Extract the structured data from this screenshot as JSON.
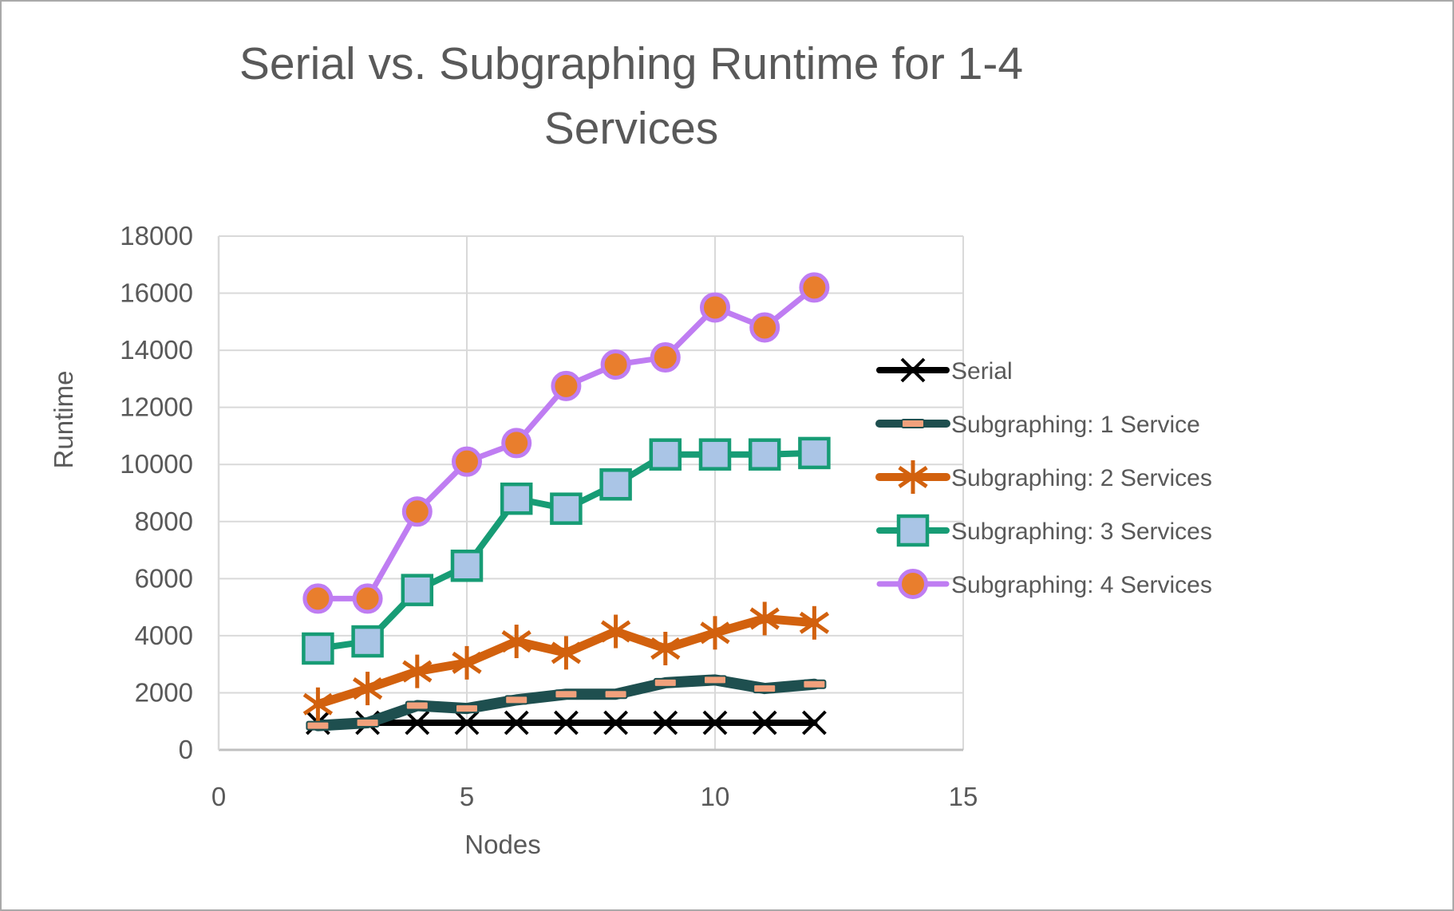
{
  "chart_data": {
    "type": "line",
    "title": "Serial vs. Subgraphing Runtime for 1-4 Services",
    "xlabel": "Nodes",
    "ylabel": "Runtime",
    "xlim": [
      0,
      15
    ],
    "ylim": [
      0,
      18000
    ],
    "x_ticks": [
      0,
      5,
      10,
      15
    ],
    "y_ticks": [
      0,
      2000,
      4000,
      6000,
      8000,
      10000,
      12000,
      14000,
      16000,
      18000
    ],
    "grid": true,
    "legend_position": "right",
    "x": [
      2,
      3,
      4,
      5,
      6,
      7,
      8,
      9,
      10,
      11,
      12
    ],
    "series": [
      {
        "name": "Serial",
        "marker": "x",
        "line_color": "#000000",
        "marker_fill": "#000000",
        "marker_stroke": "#000000",
        "line_width": 8,
        "values": [
          950,
          950,
          950,
          950,
          950,
          950,
          950,
          950,
          950,
          950,
          950
        ]
      },
      {
        "name": "Subgraphing: 1 Service",
        "marker": "dash",
        "line_color": "#1e4f4f",
        "marker_fill": "#f1a17c",
        "marker_stroke": "#1e4f4f",
        "line_width": 14,
        "values": [
          850,
          950,
          1550,
          1450,
          1750,
          1950,
          1950,
          2350,
          2450,
          2150,
          2300
        ]
      },
      {
        "name": "Subgraphing: 2 Services",
        "marker": "asterisk",
        "line_color": "#d2610e",
        "marker_fill": "#d2610e",
        "marker_stroke": "#d2610e",
        "line_width": 11,
        "values": [
          1600,
          2150,
          2750,
          3050,
          3800,
          3400,
          4150,
          3550,
          4100,
          4600,
          4450
        ]
      },
      {
        "name": "Subgraphing: 3 Services",
        "marker": "square",
        "line_color": "#179c75",
        "marker_fill": "#aac5e6",
        "marker_stroke": "#179c75",
        "line_width": 8,
        "values": [
          3550,
          3800,
          5600,
          6450,
          8800,
          8450,
          9300,
          10350,
          10350,
          10350,
          10400
        ]
      },
      {
        "name": "Subgraphing: 4 Services",
        "marker": "circle",
        "line_color": "#bf7df2",
        "marker_fill": "#e97e2d",
        "marker_stroke": "#bf7df2",
        "line_width": 7,
        "values": [
          5300,
          5300,
          8350,
          10100,
          10750,
          12750,
          13500,
          13750,
          15500,
          14800,
          16200
        ]
      }
    ],
    "colors": {
      "gridline": "#d9d9d9",
      "axis_line": "#bfbfbf",
      "tick_label": "#595959",
      "title": "#595959",
      "legend_text": "#595959",
      "background": "#ffffff"
    }
  }
}
